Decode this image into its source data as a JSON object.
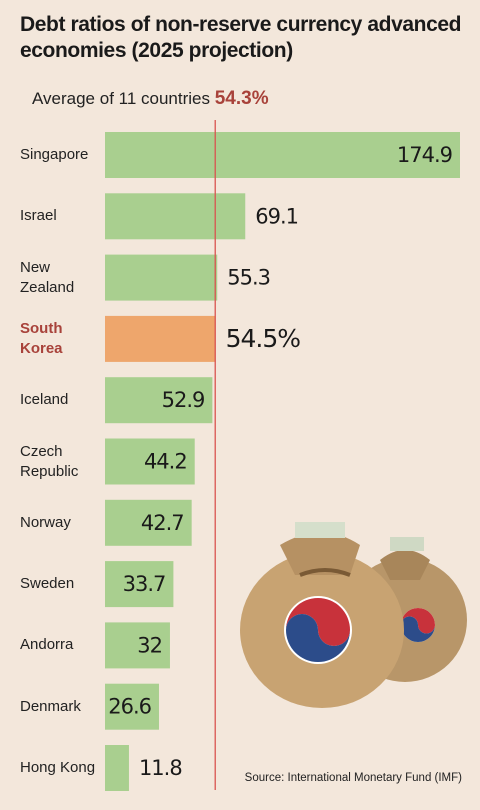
{
  "chart_data": {
    "type": "bar",
    "orientation": "horizontal",
    "title": "Debt ratios of non-reserve currency advanced\neconomies (2025 projection)",
    "categories": [
      "Singapore",
      "Israel",
      "New\nZealand",
      "South\nKorea",
      "Iceland",
      "Czech\nRepublic",
      "Norway",
      "Sweden",
      "Andorra",
      "Denmark",
      "Hong Kong"
    ],
    "values": [
      174.9,
      69.1,
      55.3,
      54.5,
      52.9,
      44.2,
      42.7,
      33.7,
      32,
      26.6,
      11.8
    ],
    "value_labels": [
      "174.9",
      "69.1",
      "55.3",
      "54.5%",
      "52.9",
      "44.2",
      "42.7",
      "33.7",
      "32",
      "26.6",
      "11.8"
    ],
    "color": "#a9cf8f",
    "highlight": "South\nKorea",
    "highlight_color": "#eea66c",
    "highlight_text_color": "#a8423a",
    "average": {
      "label": "Average of 11 countries",
      "value": 54.3,
      "value_label": "54.3%",
      "color": "#d9534f"
    },
    "source": "Source: International Monetary Fund (IMF)"
  }
}
